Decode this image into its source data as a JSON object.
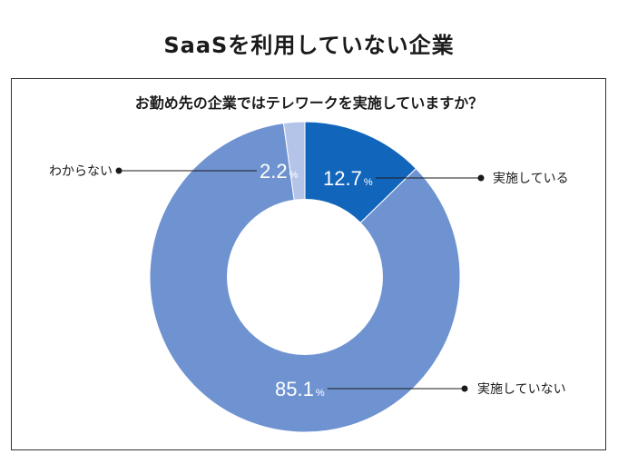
{
  "title": "SaaSを利用していない企業",
  "chart_data": {
    "type": "pie",
    "donut": true,
    "title": "お勤め先の企業ではテレワークを実施していますか？",
    "unit": "%",
    "slices": [
      {
        "label": "実施している",
        "value": 12.7,
        "value_text": "12.7",
        "color": "#1166bb"
      },
      {
        "label": "実施していない",
        "value": 85.1,
        "value_text": "85.1",
        "color": "#6f93d1"
      },
      {
        "label": "わからない",
        "value": 2.2,
        "value_text": "2.2",
        "color": "#b3c4e8"
      }
    ]
  }
}
